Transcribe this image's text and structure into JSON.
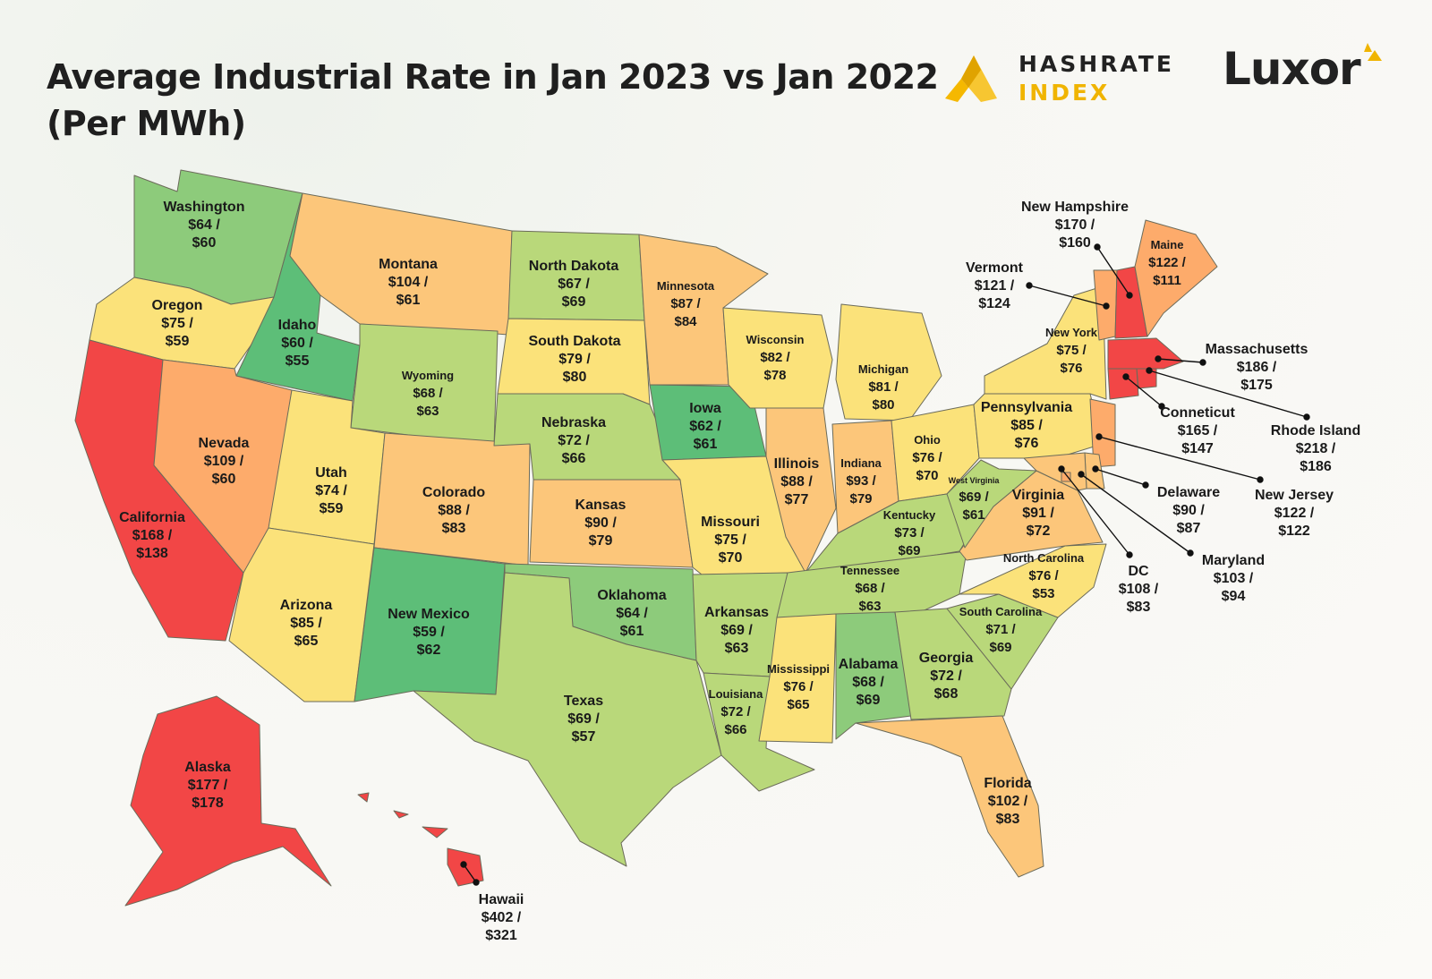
{
  "title_line1": "Average Industrial Rate in Jan 2023 vs Jan 2022",
  "title_line2": "(Per MWh)",
  "brand": {
    "hashrate_line1": "HASHRATE",
    "hashrate_line2": "INDEX",
    "luxor": "Luxor"
  },
  "colors": {
    "red": "#f24646",
    "orange": "#fdab6b",
    "lightorange": "#fcc67a",
    "yellow": "#fbe27a",
    "lightgreen": "#b9d87a",
    "green": "#8dcb7b",
    "darkgreen": "#5dbe78"
  },
  "states": [
    {
      "id": "washington",
      "name": "Washington",
      "rate_2023": "$64 /",
      "rate_2022": "$60",
      "color": "green"
    },
    {
      "id": "oregon",
      "name": "Oregon",
      "rate_2023": "$75 /",
      "rate_2022": "$59",
      "color": "yellow"
    },
    {
      "id": "california",
      "name": "California",
      "rate_2023": "$168 /",
      "rate_2022": "$138",
      "color": "red"
    },
    {
      "id": "idaho",
      "name": "Idaho",
      "rate_2023": "$60 /",
      "rate_2022": "$55",
      "color": "darkgreen"
    },
    {
      "id": "nevada",
      "name": "Nevada",
      "rate_2023": "$109 /",
      "rate_2022": "$60",
      "color": "orange"
    },
    {
      "id": "montana",
      "name": "Montana",
      "rate_2023": "$104 /",
      "rate_2022": "$61",
      "color": "lightorange"
    },
    {
      "id": "wyoming",
      "name": "Wyoming",
      "rate_2023": "$68 /",
      "rate_2022": "$63",
      "color": "lightgreen"
    },
    {
      "id": "utah",
      "name": "Utah",
      "rate_2023": "$74 /",
      "rate_2022": "$59",
      "color": "yellow"
    },
    {
      "id": "arizona",
      "name": "Arizona",
      "rate_2023": "$85 /",
      "rate_2022": "$65",
      "color": "yellow"
    },
    {
      "id": "colorado",
      "name": "Colorado",
      "rate_2023": "$88 /",
      "rate_2022": "$83",
      "color": "lightorange"
    },
    {
      "id": "newmexico",
      "name": "New Mexico",
      "rate_2023": "$59 /",
      "rate_2022": "$62",
      "color": "darkgreen"
    },
    {
      "id": "northdakota",
      "name": "North Dakota",
      "rate_2023": "$67 /",
      "rate_2022": "$69",
      "color": "lightgreen"
    },
    {
      "id": "southdakota",
      "name": "South Dakota",
      "rate_2023": "$79 /",
      "rate_2022": "$80",
      "color": "yellow"
    },
    {
      "id": "nebraska",
      "name": "Nebraska",
      "rate_2023": "$72 /",
      "rate_2022": "$66",
      "color": "lightgreen"
    },
    {
      "id": "kansas",
      "name": "Kansas",
      "rate_2023": "$90 /",
      "rate_2022": "$79",
      "color": "lightorange"
    },
    {
      "id": "oklahoma",
      "name": "Oklahoma",
      "rate_2023": "$64 /",
      "rate_2022": "$61",
      "color": "green"
    },
    {
      "id": "texas",
      "name": "Texas",
      "rate_2023": "$69 /",
      "rate_2022": "$57",
      "color": "lightgreen"
    },
    {
      "id": "minnesota",
      "name": "Minnesota",
      "rate_2023": "$87 /",
      "rate_2022": "$84",
      "color": "lightorange"
    },
    {
      "id": "iowa",
      "name": "Iowa",
      "rate_2023": "$62 /",
      "rate_2022": "$61",
      "color": "darkgreen"
    },
    {
      "id": "missouri",
      "name": "Missouri",
      "rate_2023": "$75 /",
      "rate_2022": "$70",
      "color": "yellow"
    },
    {
      "id": "arkansas",
      "name": "Arkansas",
      "rate_2023": "$69 /",
      "rate_2022": "$63",
      "color": "lightgreen"
    },
    {
      "id": "louisiana",
      "name": "Louisiana",
      "rate_2023": "$72 /",
      "rate_2022": "$66",
      "color": "lightgreen"
    },
    {
      "id": "wisconsin",
      "name": "Wisconsin",
      "rate_2023": "$82 /",
      "rate_2022": "$78",
      "color": "yellow"
    },
    {
      "id": "illinois",
      "name": "Illinois",
      "rate_2023": "$88 /",
      "rate_2022": "$77",
      "color": "lightorange"
    },
    {
      "id": "michigan",
      "name": "Michigan",
      "rate_2023": "$81 /",
      "rate_2022": "$80",
      "color": "yellow"
    },
    {
      "id": "indiana",
      "name": "Indiana",
      "rate_2023": "$93 /",
      "rate_2022": "$79",
      "color": "lightorange"
    },
    {
      "id": "ohio",
      "name": "Ohio",
      "rate_2023": "$76 /",
      "rate_2022": "$70",
      "color": "yellow"
    },
    {
      "id": "kentucky",
      "name": "Kentucky",
      "rate_2023": "$73 /",
      "rate_2022": "$69",
      "color": "lightgreen"
    },
    {
      "id": "tennessee",
      "name": "Tennessee",
      "rate_2023": "$68 /",
      "rate_2022": "$63",
      "color": "lightgreen"
    },
    {
      "id": "mississippi",
      "name": "Mississippi",
      "rate_2023": "$76 /",
      "rate_2022": "$65",
      "color": "yellow"
    },
    {
      "id": "alabama",
      "name": "Alabama",
      "rate_2023": "$68 /",
      "rate_2022": "$69",
      "color": "green"
    },
    {
      "id": "georgia",
      "name": "Georgia",
      "rate_2023": "$72 /",
      "rate_2022": "$68",
      "color": "lightgreen"
    },
    {
      "id": "florida",
      "name": "Florida",
      "rate_2023": "$102 /",
      "rate_2022": "$83",
      "color": "lightorange"
    },
    {
      "id": "southcarolina",
      "name": "South Carolina",
      "rate_2023": "$71 /",
      "rate_2022": "$69",
      "color": "lightgreen"
    },
    {
      "id": "northcarolina",
      "name": "North Carolina",
      "rate_2023": "$76 /",
      "rate_2022": "$53",
      "color": "yellow"
    },
    {
      "id": "virginia",
      "name": "Virginia",
      "rate_2023": "$91 /",
      "rate_2022": "$72",
      "color": "lightorange"
    },
    {
      "id": "westvirginia",
      "name": "West Virginia",
      "rate_2023": "$69 /",
      "rate_2022": "$61",
      "color": "lightgreen"
    },
    {
      "id": "pennsylvania",
      "name": "Pennsylvania",
      "rate_2023": "$85 /",
      "rate_2022": "$76",
      "color": "yellow"
    },
    {
      "id": "newyork",
      "name": "New York",
      "rate_2023": "$75 /",
      "rate_2022": "$76",
      "color": "yellow"
    },
    {
      "id": "vermont",
      "name": "Vermont",
      "rate_2023": "$121 /",
      "rate_2022": "$124",
      "color": "orange"
    },
    {
      "id": "newhampshire",
      "name": "New Hampshire",
      "rate_2023": "$170 /",
      "rate_2022": "$160",
      "color": "red"
    },
    {
      "id": "maine",
      "name": "Maine",
      "rate_2023": "$122 /",
      "rate_2022": "$111",
      "color": "orange"
    },
    {
      "id": "massachusetts",
      "name": "Massachusetts",
      "rate_2023": "$186 /",
      "rate_2022": "$175",
      "color": "red"
    },
    {
      "id": "rhodeisland",
      "name": "Rhode Island",
      "rate_2023": "$218 /",
      "rate_2022": "$186",
      "color": "red"
    },
    {
      "id": "connecticut",
      "name": "Conneticut",
      "rate_2023": "$165 /",
      "rate_2022": "$147",
      "color": "red"
    },
    {
      "id": "newjersey",
      "name": "New Jersey",
      "rate_2023": "$122 /",
      "rate_2022": "$122",
      "color": "orange"
    },
    {
      "id": "delaware",
      "name": "Delaware",
      "rate_2023": "$90 /",
      "rate_2022": "$87",
      "color": "lightorange"
    },
    {
      "id": "maryland",
      "name": "Maryland",
      "rate_2023": "$103 /",
      "rate_2022": "$94",
      "color": "lightorange"
    },
    {
      "id": "dc",
      "name": "DC",
      "rate_2023": "$108 /",
      "rate_2022": "$83",
      "color": "orange"
    },
    {
      "id": "alaska",
      "name": "Alaska",
      "rate_2023": "$177 /",
      "rate_2022": "$178",
      "color": "red"
    },
    {
      "id": "hawaii",
      "name": "Hawaii",
      "rate_2023": "$402 /",
      "rate_2022": "$321",
      "color": "red"
    }
  ]
}
